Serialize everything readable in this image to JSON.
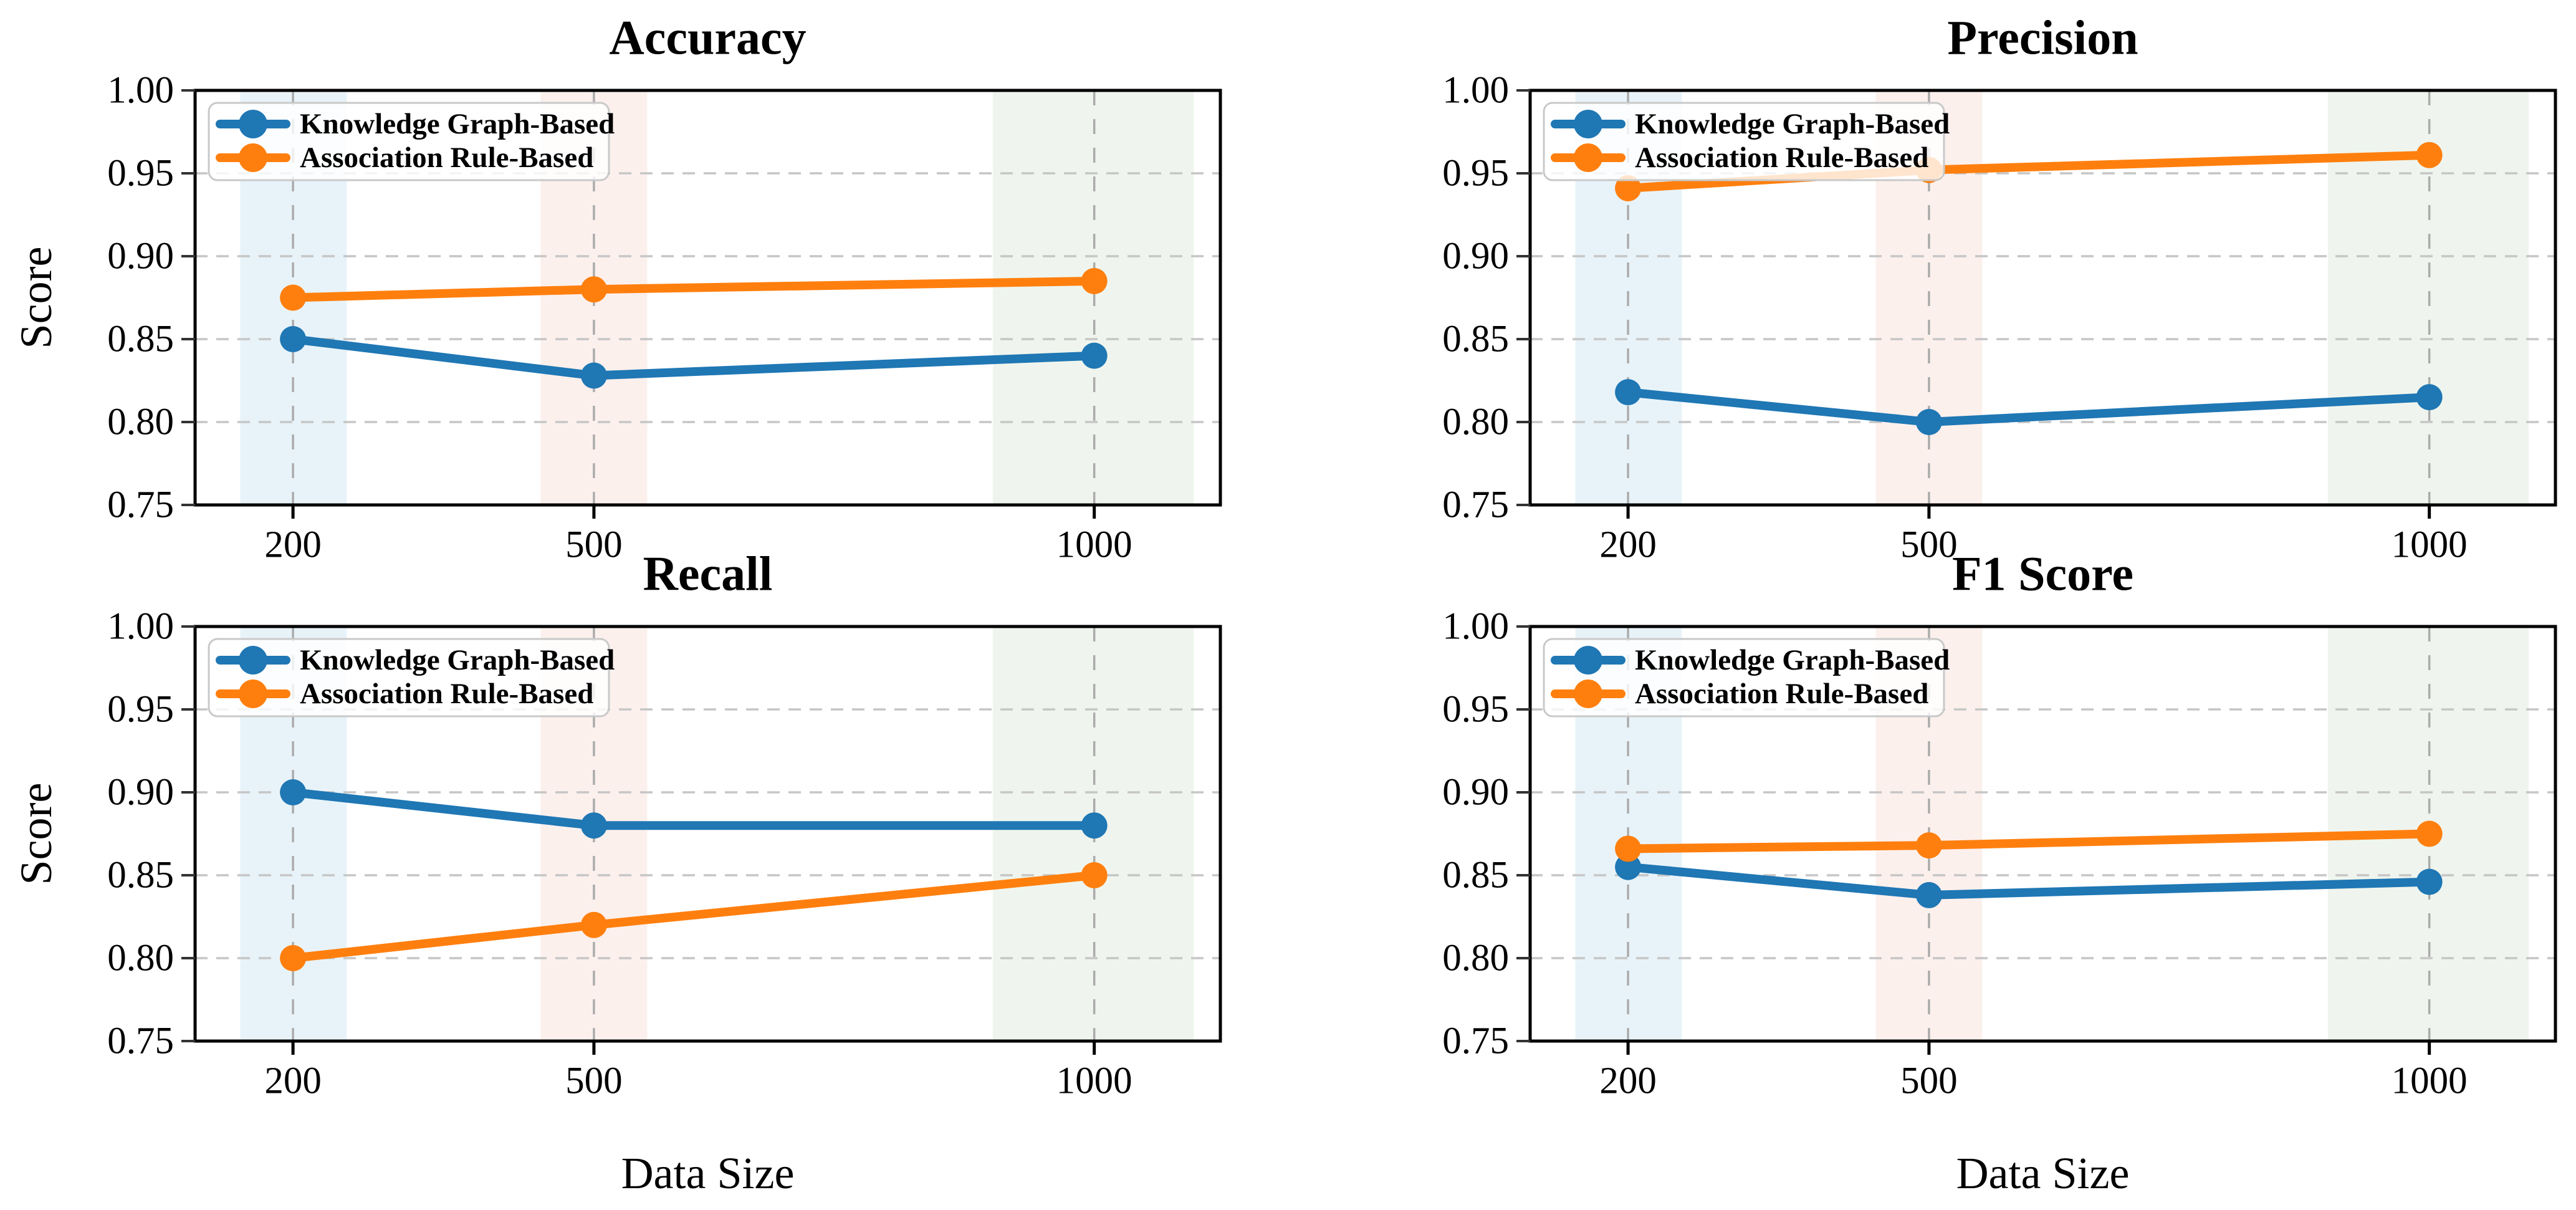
{
  "figure": {
    "background": "#ffffff",
    "shared_ylabel": "Score",
    "shared_xlabel": "Data Size"
  },
  "legend": {
    "entries": [
      {
        "label": "Knowledge Graph-Based",
        "color": "#1f77b4"
      },
      {
        "label": "Association Rule-Based",
        "color": "#ff7f0e"
      }
    ]
  },
  "style": {
    "series_colors": {
      "knowledge_graph": "#1f77b4",
      "association_rule": "#ff7f0e"
    },
    "band_colors": [
      "#e8f3f9",
      "#fcf0ed",
      "#eff5ee"
    ],
    "vertical_grid_color": "#ababab",
    "horizontal_grid_color": "#c6c6c6",
    "spine_color": "#000000",
    "legend_fill": "rgba(255,255,255,0.8)",
    "legend_border": "#c9c9c9"
  },
  "chart_data": [
    {
      "id": "accuracy",
      "type": "line",
      "position": "top-left",
      "title": "Accuracy",
      "xlabel": "",
      "ylabel": "Score",
      "categories": [
        200,
        500,
        1000
      ],
      "xtick_labels": [
        "200",
        "500",
        "1000"
      ],
      "ylim": [
        0.75,
        1.0
      ],
      "yticks": [
        0.75,
        0.8,
        0.85,
        0.9,
        0.95,
        1.0
      ],
      "ytick_labels": [
        "0.75",
        "0.80",
        "0.85",
        "0.90",
        "0.95",
        "1.00"
      ],
      "grid": true,
      "legend_position": "upper-left",
      "series": [
        {
          "name": "Knowledge Graph-Based",
          "color": "#1f77b4",
          "values": [
            0.85,
            0.828,
            0.84
          ]
        },
        {
          "name": "Association Rule-Based",
          "color": "#ff7f0e",
          "values": [
            0.875,
            0.88,
            0.885
          ]
        }
      ]
    },
    {
      "id": "precision",
      "type": "line",
      "position": "top-right",
      "title": "Precision",
      "xlabel": "",
      "ylabel": "",
      "categories": [
        200,
        500,
        1000
      ],
      "xtick_labels": [
        "200",
        "500",
        "1000"
      ],
      "ylim": [
        0.75,
        1.0
      ],
      "yticks": [
        0.75,
        0.8,
        0.85,
        0.9,
        0.95,
        1.0
      ],
      "ytick_labels": [
        "0.75",
        "0.80",
        "0.85",
        "0.90",
        "0.95",
        "1.00"
      ],
      "grid": true,
      "legend_position": "upper-left",
      "series": [
        {
          "name": "Knowledge Graph-Based",
          "color": "#1f77b4",
          "values": [
            0.818,
            0.8,
            0.815
          ]
        },
        {
          "name": "Association Rule-Based",
          "color": "#ff7f0e",
          "values": [
            0.941,
            0.952,
            0.961
          ]
        }
      ]
    },
    {
      "id": "recall",
      "type": "line",
      "position": "bottom-left",
      "title": "Recall",
      "xlabel": "Data Size",
      "ylabel": "Score",
      "categories": [
        200,
        500,
        1000
      ],
      "xtick_labels": [
        "200",
        "500",
        "1000"
      ],
      "ylim": [
        0.75,
        1.0
      ],
      "yticks": [
        0.75,
        0.8,
        0.85,
        0.9,
        0.95,
        1.0
      ],
      "ytick_labels": [
        "0.75",
        "0.80",
        "0.85",
        "0.90",
        "0.95",
        "1.00"
      ],
      "grid": true,
      "legend_position": "upper-left",
      "series": [
        {
          "name": "Knowledge Graph-Based",
          "color": "#1f77b4",
          "values": [
            0.9,
            0.88,
            0.88
          ]
        },
        {
          "name": "Association Rule-Based",
          "color": "#ff7f0e",
          "values": [
            0.8,
            0.82,
            0.85
          ]
        }
      ]
    },
    {
      "id": "f1-score",
      "type": "line",
      "position": "bottom-right",
      "title": "F1 Score",
      "xlabel": "Data Size",
      "ylabel": "",
      "categories": [
        200,
        500,
        1000
      ],
      "xtick_labels": [
        "200",
        "500",
        "1000"
      ],
      "ylim": [
        0.75,
        1.0
      ],
      "yticks": [
        0.75,
        0.8,
        0.85,
        0.9,
        0.95,
        1.0
      ],
      "ytick_labels": [
        "0.75",
        "0.80",
        "0.85",
        "0.90",
        "0.95",
        "1.00"
      ],
      "grid": true,
      "legend_position": "upper-left",
      "series": [
        {
          "name": "Knowledge Graph-Based",
          "color": "#1f77b4",
          "values": [
            0.855,
            0.838,
            0.846
          ]
        },
        {
          "name": "Association Rule-Based",
          "color": "#ff7f0e",
          "values": [
            0.866,
            0.868,
            0.875
          ]
        }
      ]
    }
  ]
}
